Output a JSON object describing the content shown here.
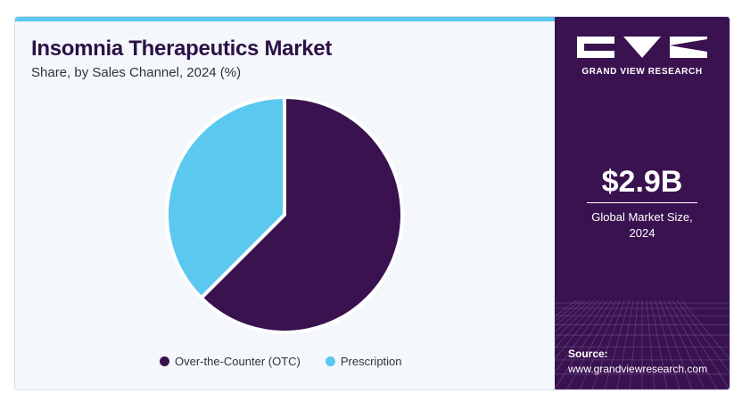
{
  "title": "Insomnia Therapeutics Market",
  "subtitle": "Share, by Sales Channel, 2024 (%)",
  "chart_data": {
    "type": "pie",
    "title": "Insomnia Therapeutics Market",
    "subtitle": "Share, by Sales Channel, 2024 (%)",
    "categories": [
      "Over-the-Counter (OTC)",
      "Prescription"
    ],
    "values": [
      62.5,
      37.5
    ],
    "colors": [
      "#3a1250",
      "#5bc8f0"
    ],
    "start_angle_deg": 0,
    "direction": "clockwise",
    "legend_position": "bottom"
  },
  "sidebar": {
    "brand": "GRAND VIEW RESEARCH",
    "market_size": "$2.9B",
    "market_size_label_line1": "Global Market Size,",
    "market_size_label_line2": "2024",
    "source_label": "Source:",
    "source_url": "www.grandviewresearch.com"
  },
  "colors": {
    "accent": "#5bc8f0",
    "brand_dark": "#3a1250",
    "title": "#2c1146"
  }
}
